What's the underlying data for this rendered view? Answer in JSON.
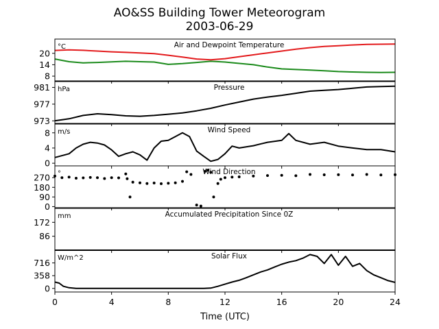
{
  "figure": {
    "title_line1": "AO&SS Building Tower Meteorogram",
    "title_line2": "2003-06-29",
    "xlabel": "Time (UTC)"
  },
  "colors": {
    "air_temperature": "#e31a1c",
    "dewpoint": "#1a8a1a",
    "default": "#000000"
  },
  "chart_data": [
    {
      "type": "line",
      "title": "Air and Dewpoint Temperature",
      "unit": "°C",
      "xlim": [
        0,
        24
      ],
      "ylim": [
        5.5,
        27.5
      ],
      "yticks": [
        8,
        14,
        20
      ],
      "xticks": [
        0,
        4,
        8,
        12,
        16,
        20,
        24
      ],
      "series": [
        {
          "name": "",
          "color_key": "air_temperature",
          "x": [
            0,
            1,
            2,
            3,
            4,
            5,
            6,
            7,
            8,
            9,
            10,
            11,
            12,
            13,
            14,
            15,
            16,
            17,
            18,
            19,
            20,
            21,
            22,
            23,
            24
          ],
          "y": [
            21.5,
            21.8,
            21.6,
            21.2,
            20.8,
            20.5,
            20.2,
            19.8,
            19.0,
            18.0,
            17.0,
            16.6,
            17.2,
            18.2,
            19.2,
            20.2,
            21.2,
            22.2,
            23.0,
            23.6,
            24.0,
            24.4,
            24.7,
            24.8,
            24.9
          ]
        },
        {
          "name": "",
          "color_key": "dewpoint",
          "x": [
            0,
            1,
            2,
            3,
            4,
            5,
            6,
            7,
            8,
            9,
            10,
            11,
            12,
            13,
            14,
            15,
            16,
            17,
            18,
            19,
            20,
            21,
            22,
            23,
            24
          ],
          "y": [
            17.0,
            15.6,
            15.0,
            15.2,
            15.5,
            15.8,
            15.6,
            15.4,
            14.2,
            14.6,
            15.2,
            15.8,
            15.4,
            14.7,
            14.0,
            12.8,
            11.8,
            11.5,
            11.2,
            10.8,
            10.4,
            10.2,
            10.0,
            9.9,
            10.0
          ]
        }
      ]
    },
    {
      "type": "line",
      "title": "Pressure",
      "unit": "hPa",
      "xlim": [
        0,
        24
      ],
      "ylim": [
        972.4,
        982.4
      ],
      "yticks": [
        973,
        977,
        981
      ],
      "series": [
        {
          "name": "",
          "color_key": "default",
          "x": [
            0,
            1,
            2,
            3,
            4,
            5,
            6,
            7,
            8,
            9,
            10,
            11,
            12,
            13,
            14,
            15,
            16,
            17,
            18,
            19,
            20,
            21,
            22,
            23,
            24
          ],
          "y": [
            973.0,
            973.5,
            974.3,
            974.7,
            974.5,
            974.2,
            974.1,
            974.3,
            974.6,
            974.9,
            975.4,
            976.0,
            976.8,
            977.5,
            978.2,
            978.7,
            979.1,
            979.6,
            980.1,
            980.3,
            980.5,
            980.8,
            981.1,
            981.2,
            981.3
          ]
        }
      ]
    },
    {
      "type": "line",
      "title": "Wind Speed",
      "unit": "m/s",
      "xlim": [
        0,
        24
      ],
      "ylim": [
        -0.7,
        10.3
      ],
      "yticks": [
        0,
        4,
        8
      ],
      "series": [
        {
          "name": "",
          "color_key": "default",
          "x": [
            0,
            1,
            1.5,
            2,
            2.5,
            3,
            3.5,
            4,
            4.5,
            5,
            5.5,
            6,
            6.5,
            7,
            7.5,
            8,
            8.5,
            9,
            9.5,
            10,
            10.5,
            11,
            11.5,
            12,
            12.5,
            13,
            14,
            15,
            16,
            16.5,
            17,
            18,
            19,
            20,
            21,
            22,
            23,
            24
          ],
          "y": [
            1.5,
            2.5,
            4.0,
            5.0,
            5.5,
            5.3,
            4.8,
            3.5,
            1.8,
            2.5,
            3.0,
            2.2,
            0.8,
            4.0,
            5.8,
            6.0,
            7.0,
            8.0,
            7.0,
            3.2,
            1.8,
            0.5,
            1.0,
            2.5,
            4.5,
            4.0,
            4.6,
            5.5,
            6.0,
            7.8,
            6.0,
            5.0,
            5.5,
            4.5,
            4.0,
            3.6,
            3.6,
            3.0
          ]
        }
      ]
    },
    {
      "type": "scatter",
      "title": "Wind Direction",
      "unit": "°",
      "xlim": [
        0,
        24
      ],
      "ylim": [
        -10,
        380
      ],
      "yticks": [
        0,
        90,
        180,
        270
      ],
      "series": [
        {
          "name": "",
          "color_key": "default",
          "x": [
            0,
            0.5,
            1,
            1.5,
            2,
            2.5,
            3,
            3.5,
            4,
            4.5,
            5,
            5.1,
            5.3,
            5.5,
            6,
            6.5,
            7,
            7.5,
            8,
            8.5,
            9,
            9.3,
            9.6,
            10,
            10.3,
            10.6,
            10.8,
            11,
            11.2,
            11.5,
            11.7,
            12,
            12.5,
            13,
            14,
            15,
            16,
            17,
            18,
            19,
            20,
            21,
            22,
            23,
            24
          ],
          "y": [
            285,
            270,
            275,
            265,
            268,
            272,
            270,
            262,
            270,
            268,
            305,
            260,
            90,
            228,
            222,
            215,
            220,
            214,
            218,
            222,
            235,
            325,
            300,
            15,
            5,
            330,
            340,
            320,
            90,
            215,
            255,
            270,
            275,
            278,
            285,
            290,
            292,
            288,
            300,
            297,
            298,
            295,
            300,
            295,
            298
          ]
        }
      ]
    },
    {
      "type": "line",
      "title": "Accumulated Precipitation Since 0Z",
      "unit": "mm",
      "xlim": [
        0,
        24
      ],
      "ylim": [
        0,
        258
      ],
      "yticks": [
        86,
        172
      ],
      "series": [
        {
          "name": "",
          "color_key": "default",
          "x": [
            0,
            24
          ],
          "y": [
            0,
            0
          ]
        }
      ]
    },
    {
      "type": "line",
      "title": "Solar Flux",
      "unit": "W/m^2",
      "xlim": [
        0,
        24
      ],
      "ylim": [
        -100,
        1074
      ],
      "yticks": [
        0,
        358,
        716
      ],
      "series": [
        {
          "name": "",
          "color_key": "default",
          "x": [
            0,
            0.3,
            0.6,
            1,
            1.5,
            2,
            3,
            4,
            5,
            6,
            7,
            8,
            9,
            10,
            10.5,
            11,
            11.5,
            12,
            12.5,
            13,
            13.5,
            14,
            14.5,
            15,
            15.5,
            16,
            16.5,
            17,
            17.5,
            18,
            18.5,
            19,
            19.5,
            20,
            20.5,
            21,
            21.5,
            22,
            22.5,
            23,
            23.5,
            24
          ],
          "y": [
            180,
            150,
            60,
            20,
            0,
            0,
            0,
            0,
            0,
            0,
            0,
            0,
            0,
            0,
            0,
            10,
            60,
            120,
            180,
            230,
            300,
            380,
            460,
            520,
            600,
            680,
            740,
            780,
            850,
            950,
            900,
            700,
            950,
            650,
            900,
            620,
            700,
            500,
            380,
            300,
            220,
            170
          ]
        }
      ]
    }
  ]
}
